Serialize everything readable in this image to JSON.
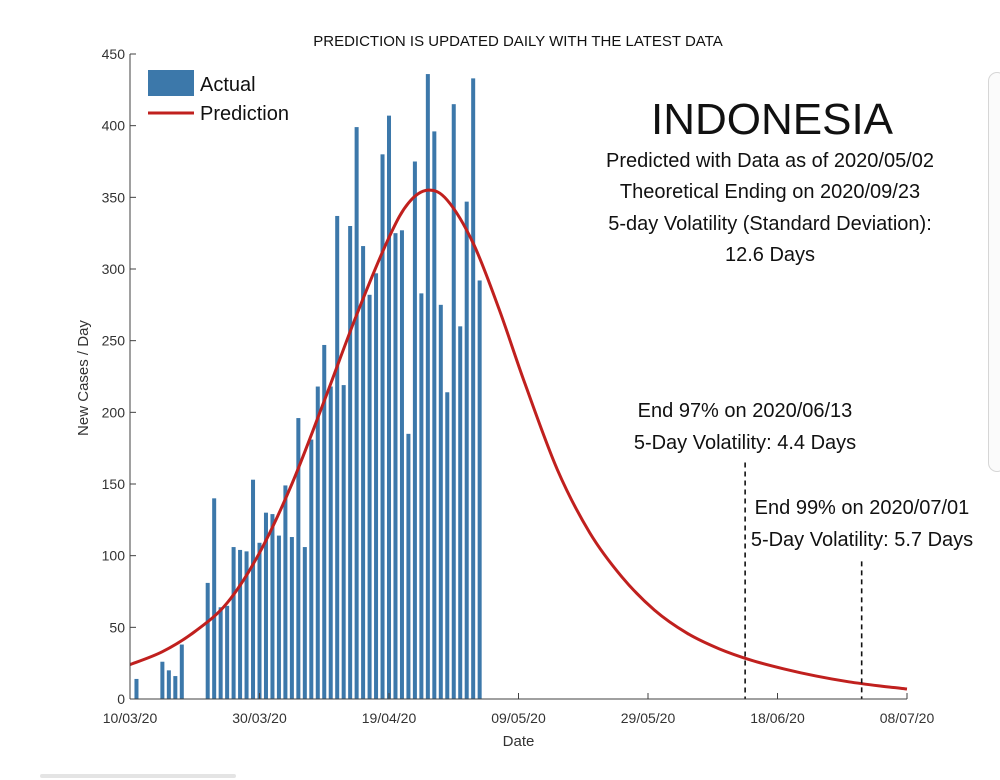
{
  "header": "PREDICTION IS UPDATED DAILY WITH THE LATEST DATA",
  "country": "INDONESIA",
  "info_lines": [
    "Predicted with Data as of 2020/05/02",
    "Theoretical Ending on 2020/09/23",
    "5-day Volatility (Standard Deviation):",
    "12.6 Days"
  ],
  "annotation_97": [
    "End 97% on 2020/06/13",
    "5-Day Volatility: 4.4 Days"
  ],
  "annotation_99": [
    "End 99% on 2020/07/01",
    "5-Day Volatility: 5.7 Days"
  ],
  "chart_data": {
    "type": "bar",
    "xlabel": "Date",
    "ylabel": "New Cases / Day",
    "ylim": [
      0,
      450
    ],
    "yticks": [
      0,
      50,
      100,
      150,
      200,
      250,
      300,
      350,
      400,
      450
    ],
    "xlim": [
      "2020-03-10",
      "2020-07-08"
    ],
    "xtick_labels": [
      "10/03/20",
      "30/03/20",
      "19/04/20",
      "09/05/20",
      "29/05/20",
      "18/06/20",
      "08/07/20"
    ],
    "legend": {
      "position": "top-left",
      "entries": [
        "Actual",
        "Prediction"
      ]
    },
    "grid": false,
    "colors": {
      "actual": "#3c78aa",
      "prediction": "#c0201e",
      "axis": "#404040"
    },
    "series": [
      {
        "name": "Actual",
        "type": "bar",
        "start_date": "2020-03-10",
        "values": [
          0,
          14,
          0,
          0,
          0,
          26,
          20,
          16,
          38,
          0,
          0,
          0,
          81,
          140,
          64,
          65,
          106,
          104,
          103,
          153,
          109,
          130,
          129,
          114,
          149,
          113,
          196,
          106,
          181,
          218,
          247,
          218,
          337,
          219,
          330,
          399,
          316,
          282,
          297,
          380,
          407,
          325,
          327,
          185,
          375,
          283,
          436,
          396,
          275,
          214,
          415,
          260,
          347,
          433,
          292
        ]
      },
      {
        "name": "Prediction",
        "type": "line",
        "points": [
          [
            "2020-03-10",
            24
          ],
          [
            "2020-03-15",
            33
          ],
          [
            "2020-03-20",
            47
          ],
          [
            "2020-03-25",
            67
          ],
          [
            "2020-03-30",
            102
          ],
          [
            "2020-04-04",
            150
          ],
          [
            "2020-04-09",
            208
          ],
          [
            "2020-04-14",
            268
          ],
          [
            "2020-04-19",
            322
          ],
          [
            "2020-04-22",
            346
          ],
          [
            "2020-04-25",
            355
          ],
          [
            "2020-04-28",
            348
          ],
          [
            "2020-05-02",
            318
          ],
          [
            "2020-05-06",
            272
          ],
          [
            "2020-05-10",
            220
          ],
          [
            "2020-05-15",
            160
          ],
          [
            "2020-05-20",
            116
          ],
          [
            "2020-05-25",
            85
          ],
          [
            "2020-05-30",
            62
          ],
          [
            "2020-06-04",
            46
          ],
          [
            "2020-06-09",
            35
          ],
          [
            "2020-06-14",
            27
          ],
          [
            "2020-06-19",
            21
          ],
          [
            "2020-06-24",
            16
          ],
          [
            "2020-06-29",
            12
          ],
          [
            "2020-07-04",
            9
          ],
          [
            "2020-07-08",
            7
          ]
        ]
      }
    ],
    "vlines": [
      {
        "date": "2020-06-13",
        "label": "End 97%",
        "y_top": 165
      },
      {
        "date": "2020-07-01",
        "label": "End 99%",
        "y_top": 96
      }
    ]
  }
}
